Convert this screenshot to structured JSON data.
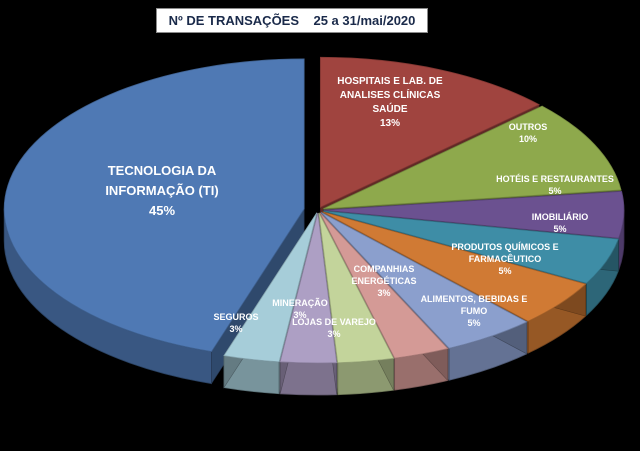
{
  "title": "Nº DE TRANSAÇÕES    25 a 31/mai/2020",
  "chart_data": {
    "type": "pie",
    "title": "Nº DE TRANSAÇÕES    25 a 31/mai/2020",
    "style": "3d-exploded",
    "legend": "none",
    "slices": [
      {
        "label": "HOSPITAIS E LAB. DE ANALISES CLÍNICAS SAÚDE",
        "lines": [
          "HOSPITAIS E LAB. DE",
          "ANALISES CLÍNICAS",
          "SAÚDE"
        ],
        "value": 13,
        "value_label": "13%",
        "color": "#a0443f"
      },
      {
        "label": "OUTROS",
        "lines": [
          "OUTROS"
        ],
        "value": 10,
        "value_label": "10%",
        "color": "#8ea94c"
      },
      {
        "label": "HOTÉIS E RESTAURANTES",
        "lines": [
          "HOTÉIS E RESTAURANTES"
        ],
        "value": 5,
        "value_label": "5%",
        "color": "#6b5190"
      },
      {
        "label": "IMOBILIÁRIO",
        "lines": [
          "IMOBILIÁRIO"
        ],
        "value": 5,
        "value_label": "5%",
        "color": "#3e8da6"
      },
      {
        "label": "PRODUTOS QUÍMICOS E FARMACÊUTICO",
        "lines": [
          "PRODUTOS QUÍMICOS E",
          "FARMACÊUTICO"
        ],
        "value": 5,
        "value_label": "5%",
        "color": "#d07a34"
      },
      {
        "label": "ALIMENTOS, BEBIDAS E FUMO",
        "lines": [
          "ALIMENTOS, BEBIDAS E",
          "FUMO"
        ],
        "value": 5,
        "value_label": "5%",
        "color": "#8b9fcd"
      },
      {
        "label": "COMPANHIAS ENERGÉTICAS",
        "lines": [
          "COMPANHIAS",
          "ENERGÉTICAS"
        ],
        "value": 3,
        "value_label": "3%",
        "color": "#d49a96"
      },
      {
        "label": "LOJAS DE VAREJO",
        "lines": [
          "LOJAS DE VAREJO"
        ],
        "value": 3,
        "value_label": "3%",
        "color": "#c3d49b"
      },
      {
        "label": "MINERAÇÃO",
        "lines": [
          "MINERAÇÃO"
        ],
        "value": 3,
        "value_label": "3%",
        "color": "#ad9fc4"
      },
      {
        "label": "SEGUROS",
        "lines": [
          "SEGUROS"
        ],
        "value": 3,
        "value_label": "3%",
        "color": "#a6cdd9"
      },
      {
        "label": "TECNOLOGIA DA INFORMAÇÃO (TI)",
        "lines": [
          "TECNOLOGIA DA",
          "INFORMAÇÃO (TI)"
        ],
        "value": 45,
        "value_label": "45%",
        "color": "#4f79b4"
      }
    ]
  }
}
